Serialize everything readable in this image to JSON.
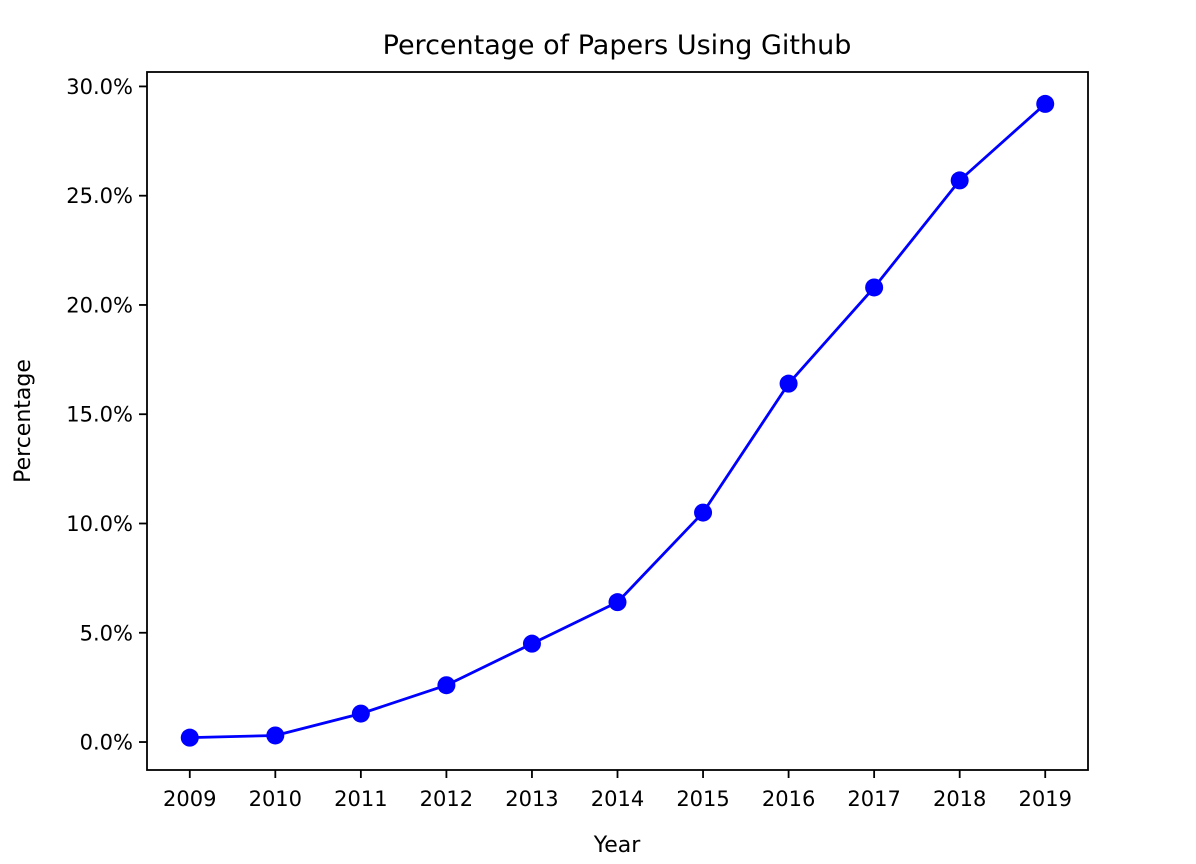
{
  "chart_data": {
    "type": "line",
    "title": "Percentage of Papers Using Github",
    "xlabel": "Year",
    "ylabel": "Percentage",
    "x": [
      2009,
      2010,
      2011,
      2012,
      2013,
      2014,
      2015,
      2016,
      2017,
      2018,
      2019
    ],
    "xtick_labels": [
      "2009",
      "2010",
      "2011",
      "2012",
      "2013",
      "2014",
      "2015",
      "2016",
      "2017",
      "2018",
      "2019"
    ],
    "values": [
      0.2,
      0.3,
      1.3,
      2.6,
      4.5,
      6.4,
      10.5,
      16.4,
      20.8,
      25.7,
      29.2
    ],
    "series_name": "percentage-of-papers-using-github",
    "yticks": [
      0,
      5,
      10,
      15,
      20,
      25,
      30
    ],
    "ytick_labels": [
      "0.0%",
      "5.0%",
      "10.0%",
      "15.0%",
      "20.0%",
      "25.0%",
      "30.0%"
    ],
    "xlim": [
      2008.5,
      2019.5
    ],
    "ylim": [
      -1.28,
      30.66
    ],
    "grid": false,
    "legend_position": "none",
    "line_color": "#0000ff",
    "marker": "circle",
    "marker_color": "#0000ff",
    "axis_color": "#000000",
    "text_color": "#000000",
    "background_color": "#ffffff"
  }
}
